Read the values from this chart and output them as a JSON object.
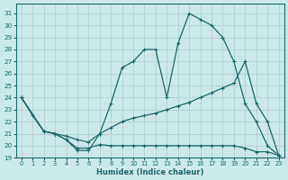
{
  "xlabel": "Humidex (Indice chaleur)",
  "xlim": [
    -0.5,
    23.5
  ],
  "ylim": [
    19,
    31.8
  ],
  "yticks": [
    19,
    20,
    21,
    22,
    23,
    24,
    25,
    26,
    27,
    28,
    29,
    30,
    31
  ],
  "xticks": [
    0,
    1,
    2,
    3,
    4,
    5,
    6,
    7,
    8,
    9,
    10,
    11,
    12,
    13,
    14,
    15,
    16,
    17,
    18,
    19,
    20,
    21,
    22,
    23
  ],
  "bg_color": "#cce8e8",
  "grid_color": "#aacccc",
  "line_color": "#1a6b6b",
  "line1_x": [
    0,
    1,
    2,
    3,
    4,
    5,
    6,
    7,
    8,
    9,
    10,
    11,
    12,
    13,
    14,
    15,
    16,
    17,
    18,
    19,
    20,
    21,
    22,
    23
  ],
  "line1_y": [
    24,
    22.5,
    21.2,
    21.0,
    20.5,
    19.6,
    19.6,
    21.0,
    23.5,
    26.5,
    27.0,
    28.0,
    28.0,
    24.0,
    28.5,
    31.0,
    30.5,
    30.0,
    29.0,
    27.0,
    23.5,
    22.0,
    20.0,
    19.2
  ],
  "line2_x": [
    0,
    2,
    3,
    4,
    5,
    6,
    7,
    8,
    9,
    10,
    11,
    12,
    13,
    14,
    15,
    16,
    17,
    18,
    19,
    20,
    21,
    22,
    23
  ],
  "line2_y": [
    24,
    21.2,
    21.0,
    20.8,
    20.5,
    20.3,
    21.0,
    21.5,
    22.0,
    22.3,
    22.5,
    22.7,
    23.0,
    23.3,
    23.6,
    24.0,
    24.4,
    24.8,
    25.2,
    27.0,
    23.5,
    22.0,
    19.2
  ],
  "line3_x": [
    0,
    2,
    3,
    4,
    5,
    6,
    7,
    8,
    9,
    10,
    11,
    12,
    13,
    14,
    15,
    16,
    17,
    18,
    19,
    20,
    21,
    22,
    23
  ],
  "line3_y": [
    24,
    21.2,
    21.0,
    20.5,
    19.8,
    19.8,
    20.1,
    20.0,
    20.0,
    20.0,
    20.0,
    20.0,
    20.0,
    20.0,
    20.0,
    20.0,
    20.0,
    20.0,
    20.0,
    19.8,
    19.5,
    19.5,
    19.2
  ]
}
